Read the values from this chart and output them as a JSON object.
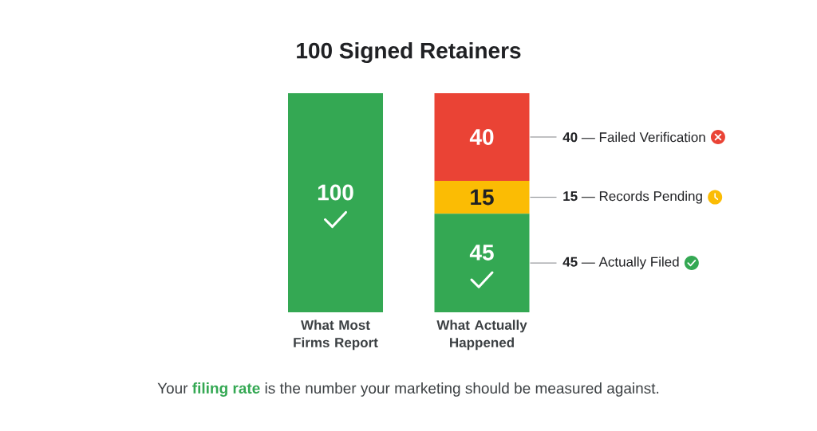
{
  "chart_data": {
    "type": "bar",
    "stacked": true,
    "title": "100 Signed Retainers",
    "categories": [
      "What Most Firms Report",
      "What Actually Happened"
    ],
    "series": [
      {
        "name": "**45** — Actually Filed",
        "color": "#34a853",
        "values": [
          100,
          45
        ]
      },
      {
        "name": "**15** — Records Pending",
        "color": "#fbbc04",
        "values": [
          null,
          15
        ]
      },
      {
        "name": "**40** — Failed Verification",
        "color": "#ea4335",
        "values": [
          null,
          40
        ]
      }
    ],
    "data_labels": true,
    "annotations": [
      "Your **filing rate** is the number your marketing should be measured against."
    ]
  }
}
